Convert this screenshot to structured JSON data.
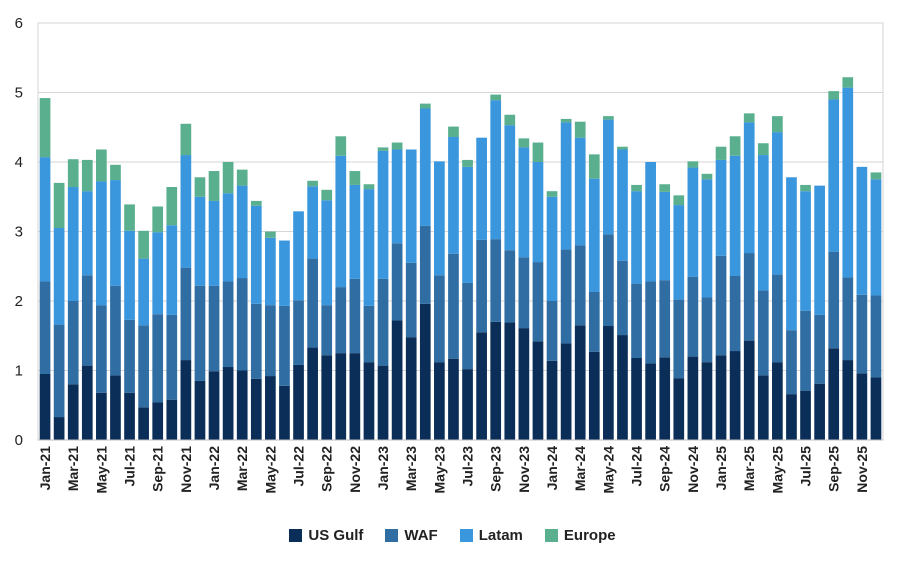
{
  "chart_data": {
    "type": "bar",
    "stacked": true,
    "title": "",
    "xlabel": "",
    "ylabel": "",
    "ylim": [
      0,
      6
    ],
    "yticks": [
      "0",
      "1",
      "2",
      "3",
      "4",
      "5",
      "6"
    ],
    "grid": "horizontal",
    "legend_position": "bottom",
    "categories": [
      "Jan-21",
      "Feb-21",
      "Mar-21",
      "Apr-21",
      "May-21",
      "Jun-21",
      "Jul-21",
      "Aug-21",
      "Sep-21",
      "Oct-21",
      "Nov-21",
      "Dec-21",
      "Jan-22",
      "Feb-22",
      "Mar-22",
      "Apr-22",
      "May-22",
      "Jun-22",
      "Jul-22",
      "Aug-22",
      "Sep-22",
      "Oct-22",
      "Nov-22",
      "Dec-22",
      "Jan-23",
      "Feb-23",
      "Mar-23",
      "Apr-23",
      "May-23",
      "Jun-23",
      "Jul-23",
      "Aug-23",
      "Sep-23",
      "Oct-23",
      "Nov-23",
      "Dec-23",
      "Jan-24",
      "Feb-24",
      "Mar-24",
      "Apr-24",
      "May-24",
      "Jun-24",
      "Jul-24",
      "Aug-24",
      "Sep-24",
      "Oct-24",
      "Nov-24",
      "Dec-24",
      "Jan-25",
      "Feb-25",
      "Mar-25",
      "Apr-25",
      "May-25",
      "Jun-25",
      "Jul-25",
      "Aug-25",
      "Sep-25",
      "Oct-25",
      "Nov-25",
      "Dec-25"
    ],
    "tick_labels": [
      "Jan-21",
      "",
      "Mar-21",
      "",
      "May-21",
      "",
      "Jul-21",
      "",
      "Sep-21",
      "",
      "Nov-21",
      "",
      "Jan-22",
      "",
      "Mar-22",
      "",
      "May-22",
      "",
      "Jul-22",
      "",
      "Sep-22",
      "",
      "Nov-22",
      "",
      "Jan-23",
      "",
      "Mar-23",
      "",
      "May-23",
      "",
      "Jul-23",
      "",
      "Sep-23",
      "",
      "Nov-23",
      "",
      "Jan-24",
      "",
      "Mar-24",
      "",
      "May-24",
      "",
      "Jul-24",
      "",
      "Sep-24",
      "",
      "Nov-24",
      "",
      "Jan-25",
      "",
      "Mar-25",
      "",
      "May-25",
      "",
      "Jul-25",
      "",
      "Sep-25",
      "",
      "Nov-25",
      ""
    ],
    "series": [
      {
        "name": "US Gulf",
        "color": "#0b2e59",
        "values": [
          0.95,
          0.33,
          0.8,
          1.07,
          0.68,
          0.93,
          0.68,
          0.47,
          0.54,
          0.58,
          1.15,
          0.85,
          0.99,
          1.05,
          1.0,
          0.88,
          0.92,
          0.78,
          1.08,
          1.33,
          1.22,
          1.25,
          1.25,
          1.12,
          1.07,
          1.72,
          1.48,
          1.96,
          1.12,
          1.17,
          1.02,
          1.55,
          1.7,
          1.69,
          1.61,
          1.42,
          1.14,
          1.39,
          1.65,
          1.27,
          1.64,
          1.51,
          1.18,
          1.1,
          1.19,
          0.89,
          1.2,
          1.12,
          1.22,
          1.28,
          1.43,
          0.93,
          1.12,
          0.66,
          0.71,
          0.81,
          1.32,
          1.15,
          0.96,
          0.9
        ]
      },
      {
        "name": "WAF",
        "color": "#2f6da3",
        "values": [
          1.33,
          1.33,
          1.2,
          1.3,
          1.26,
          1.29,
          1.05,
          1.18,
          1.27,
          1.22,
          1.33,
          1.37,
          1.23,
          1.23,
          1.33,
          1.08,
          1.02,
          1.15,
          0.93,
          1.28,
          0.72,
          0.95,
          1.07,
          0.81,
          1.25,
          1.11,
          1.07,
          1.12,
          1.25,
          1.51,
          1.24,
          1.33,
          1.19,
          1.04,
          1.02,
          1.14,
          0.86,
          1.35,
          1.15,
          0.86,
          1.32,
          1.07,
          1.07,
          1.18,
          1.11,
          1.13,
          1.15,
          0.93,
          1.43,
          1.08,
          1.26,
          1.22,
          1.26,
          0.92,
          1.15,
          0.99,
          1.39,
          1.19,
          1.13,
          1.18
        ]
      },
      {
        "name": "Latam",
        "color": "#3a96dd",
        "values": [
          1.79,
          1.39,
          1.64,
          1.21,
          1.78,
          1.52,
          1.28,
          0.96,
          1.18,
          1.29,
          1.62,
          1.28,
          1.22,
          1.27,
          1.33,
          1.41,
          0.97,
          0.94,
          1.28,
          1.04,
          1.51,
          1.89,
          1.35,
          1.68,
          1.84,
          1.35,
          1.63,
          1.69,
          1.64,
          1.68,
          1.67,
          1.47,
          2.0,
          1.8,
          1.58,
          1.44,
          1.5,
          1.83,
          1.55,
          1.63,
          1.65,
          1.6,
          1.33,
          1.72,
          1.27,
          1.36,
          1.57,
          1.7,
          1.38,
          1.73,
          1.88,
          1.95,
          2.05,
          2.2,
          1.72,
          1.86,
          2.19,
          2.73,
          1.84,
          1.67
        ]
      },
      {
        "name": "Europe",
        "color": "#5aaf8f",
        "values": [
          0.85,
          0.65,
          0.4,
          0.45,
          0.46,
          0.22,
          0.38,
          0.4,
          0.37,
          0.55,
          0.45,
          0.28,
          0.43,
          0.45,
          0.23,
          0.07,
          0.09,
          0.0,
          0.0,
          0.08,
          0.15,
          0.28,
          0.2,
          0.07,
          0.05,
          0.1,
          0.0,
          0.07,
          0.0,
          0.15,
          0.1,
          0.0,
          0.08,
          0.15,
          0.13,
          0.28,
          0.08,
          0.05,
          0.23,
          0.35,
          0.05,
          0.04,
          0.09,
          0.0,
          0.11,
          0.14,
          0.09,
          0.08,
          0.19,
          0.28,
          0.13,
          0.17,
          0.23,
          0.0,
          0.09,
          0.0,
          0.12,
          0.15,
          0.0,
          0.1
        ]
      }
    ]
  }
}
